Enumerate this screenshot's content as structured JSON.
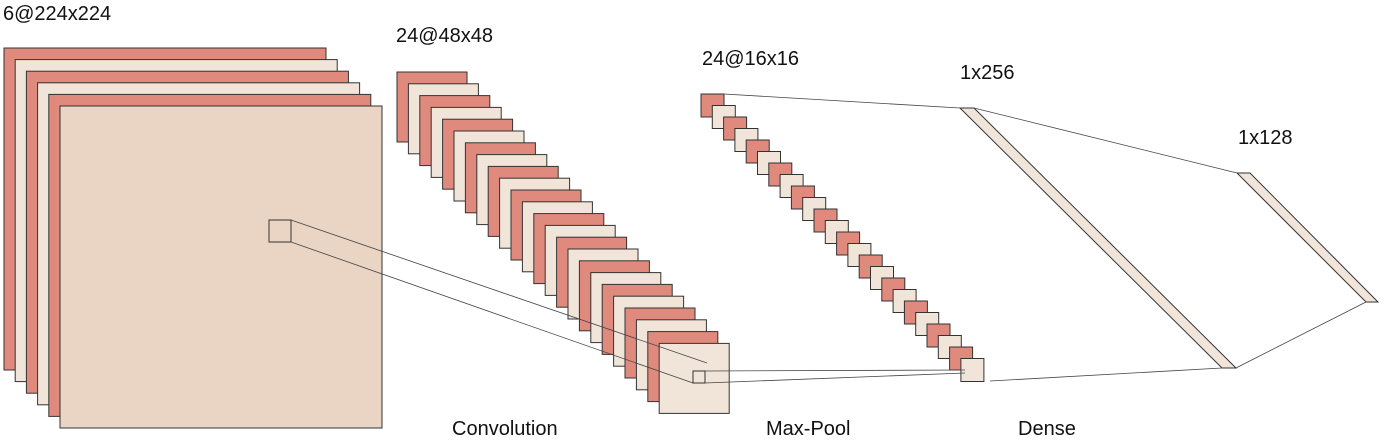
{
  "layers": [
    {
      "id": "input",
      "shape_label": "6@224x224",
      "maps": 6
    },
    {
      "id": "conv",
      "shape_label": "24@48x48",
      "maps": 24
    },
    {
      "id": "pool",
      "shape_label": "24@16x16",
      "maps": 24
    },
    {
      "id": "dense1",
      "shape_label": "1x256"
    },
    {
      "id": "dense2",
      "shape_label": "1x128"
    }
  ],
  "operations": [
    {
      "id": "convolution",
      "label": "Convolution"
    },
    {
      "id": "maxpool",
      "label": "Max-Pool"
    },
    {
      "id": "dense",
      "label": "Dense"
    }
  ],
  "colors": {
    "red": "#df8a7c",
    "beige": "#f1e5d9",
    "beige_front": "#ead4c4",
    "stroke": "#333333",
    "line": "#444444"
  }
}
